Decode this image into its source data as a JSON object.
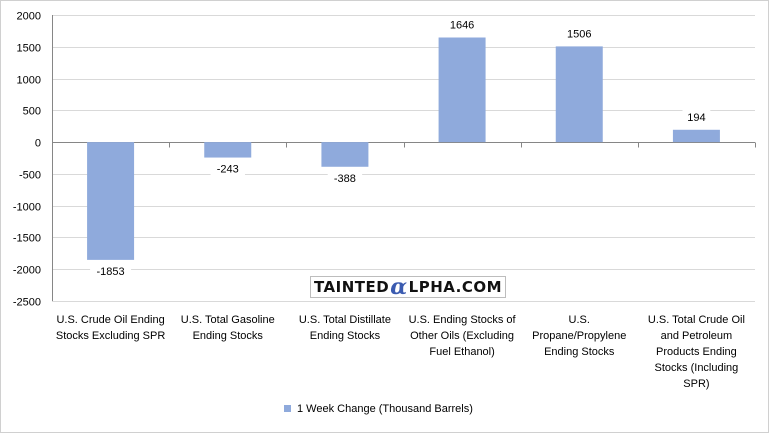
{
  "chart_data": {
    "type": "bar",
    "categories": [
      [
        "U.S. Crude Oil Ending",
        "Stocks Excluding SPR"
      ],
      [
        "U.S. Total Gasoline",
        "Ending Stocks"
      ],
      [
        "U.S. Total Distillate",
        "Ending Stocks"
      ],
      [
        "U.S. Ending Stocks of",
        "Other Oils (Excluding",
        "Fuel Ethanol)"
      ],
      [
        "U.S.",
        "Propane/Propylene",
        "Ending Stocks"
      ],
      [
        "U.S. Total Crude Oil",
        "and Petroleum",
        "Products Ending",
        "Stocks (Including",
        "SPR)"
      ]
    ],
    "series": [
      {
        "name": "1 Week Change (Thousand Barrels)",
        "values": [
          -1853,
          -243,
          -388,
          1646,
          1506,
          194
        ],
        "color": "#8faadc"
      }
    ],
    "data_labels": [
      "-1853",
      "-243",
      "-388",
      "1646",
      "1506",
      "194"
    ],
    "ylim": [
      -2500,
      2000
    ],
    "yticks": [
      "2000",
      "1500",
      "1000",
      "500",
      "0",
      "-500",
      "-1000",
      "-1500",
      "-2000",
      "-2500"
    ],
    "grid": true,
    "legend_position": "bottom",
    "title": "",
    "xlabel": "",
    "ylabel": ""
  },
  "watermark": {
    "pre": "TAINTED",
    "alpha": "α",
    "post": "LPHA.COM"
  }
}
